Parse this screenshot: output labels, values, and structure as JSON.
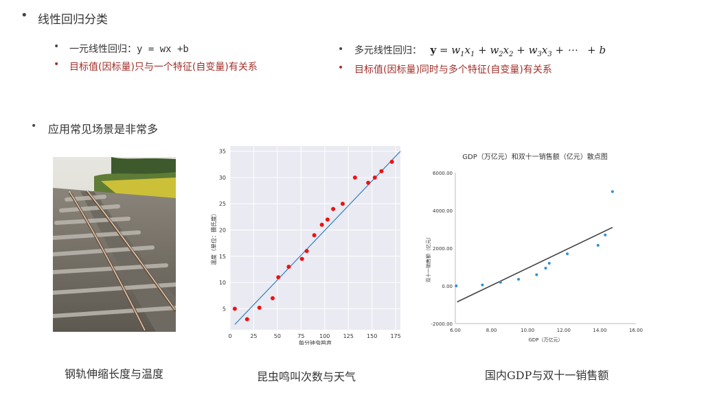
{
  "section1": {
    "title": "线性回归分类"
  },
  "simple": {
    "label": "一元线性回归：",
    "formula": "y = wx +b",
    "desc": "目标值(因标量)只与一个特征(自变量)有关系"
  },
  "multi": {
    "label": "多元线性回归：",
    "desc": "目标值(因标量)同时与多个特征(自变量)有关系"
  },
  "section2": {
    "title": "应用常见场景是非常多"
  },
  "captions": {
    "rail": "钢轨伸缩长度与温度",
    "cricket": "昆虫鸣叫次数与天气",
    "gdp": "国内GDP与双十一销售额"
  },
  "chart_data": [
    {
      "type": "scatter",
      "title": "",
      "xlabel": "每分钟虫鸣声",
      "ylabel": "温度（单位：摄氏度）",
      "xlim": [
        0,
        180
      ],
      "ylim": [
        1,
        36
      ],
      "xticks": [
        "0",
        "25",
        "50",
        "75",
        "100",
        "125",
        "150",
        "175"
      ],
      "yticks": [
        "5",
        "10",
        "15",
        "20",
        "25",
        "30",
        "35"
      ],
      "grid": true,
      "point_color": "#ee1111",
      "line_color": "#2f7fc1",
      "x": [
        5,
        18,
        31,
        45,
        51,
        62,
        76,
        81,
        89,
        97,
        103,
        109,
        119,
        132,
        146,
        153,
        160,
        171
      ],
      "y": [
        5,
        3,
        5.2,
        7,
        11,
        13,
        14.5,
        16,
        19,
        21,
        22,
        24,
        25,
        30,
        29,
        30,
        31.2,
        33
      ],
      "fit_line": [
        [
          5,
          2
        ],
        [
          180,
          35
        ]
      ]
    },
    {
      "type": "scatter",
      "title": "GDP（万亿元）和双十一销售额（亿元）散点图",
      "xlabel": "GDP（万亿元）",
      "ylabel": "双十一销售额（亿元）",
      "xlim": [
        6,
        16
      ],
      "ylim": [
        -2000,
        6000
      ],
      "xticks": [
        "6.00",
        "8.00",
        "10.00",
        "12.00",
        "14.00",
        "16.00"
      ],
      "yticks": [
        "-2000.00",
        "0.00",
        "2000.00",
        "4000.00",
        "6000.00"
      ],
      "grid": false,
      "point_color": "#2b8fd6",
      "line_color": "#404040",
      "x": [
        6.05,
        7.5,
        8.5,
        9.5,
        10.5,
        11,
        11.2,
        12.2,
        13.9,
        14.3,
        14.7
      ],
      "y": [
        0,
        50,
        190,
        350,
        590,
        940,
        1200,
        1700,
        2150,
        2700,
        5000
      ],
      "fit_line": [
        [
          6.1,
          -850
        ],
        [
          14.7,
          3100
        ]
      ]
    }
  ]
}
